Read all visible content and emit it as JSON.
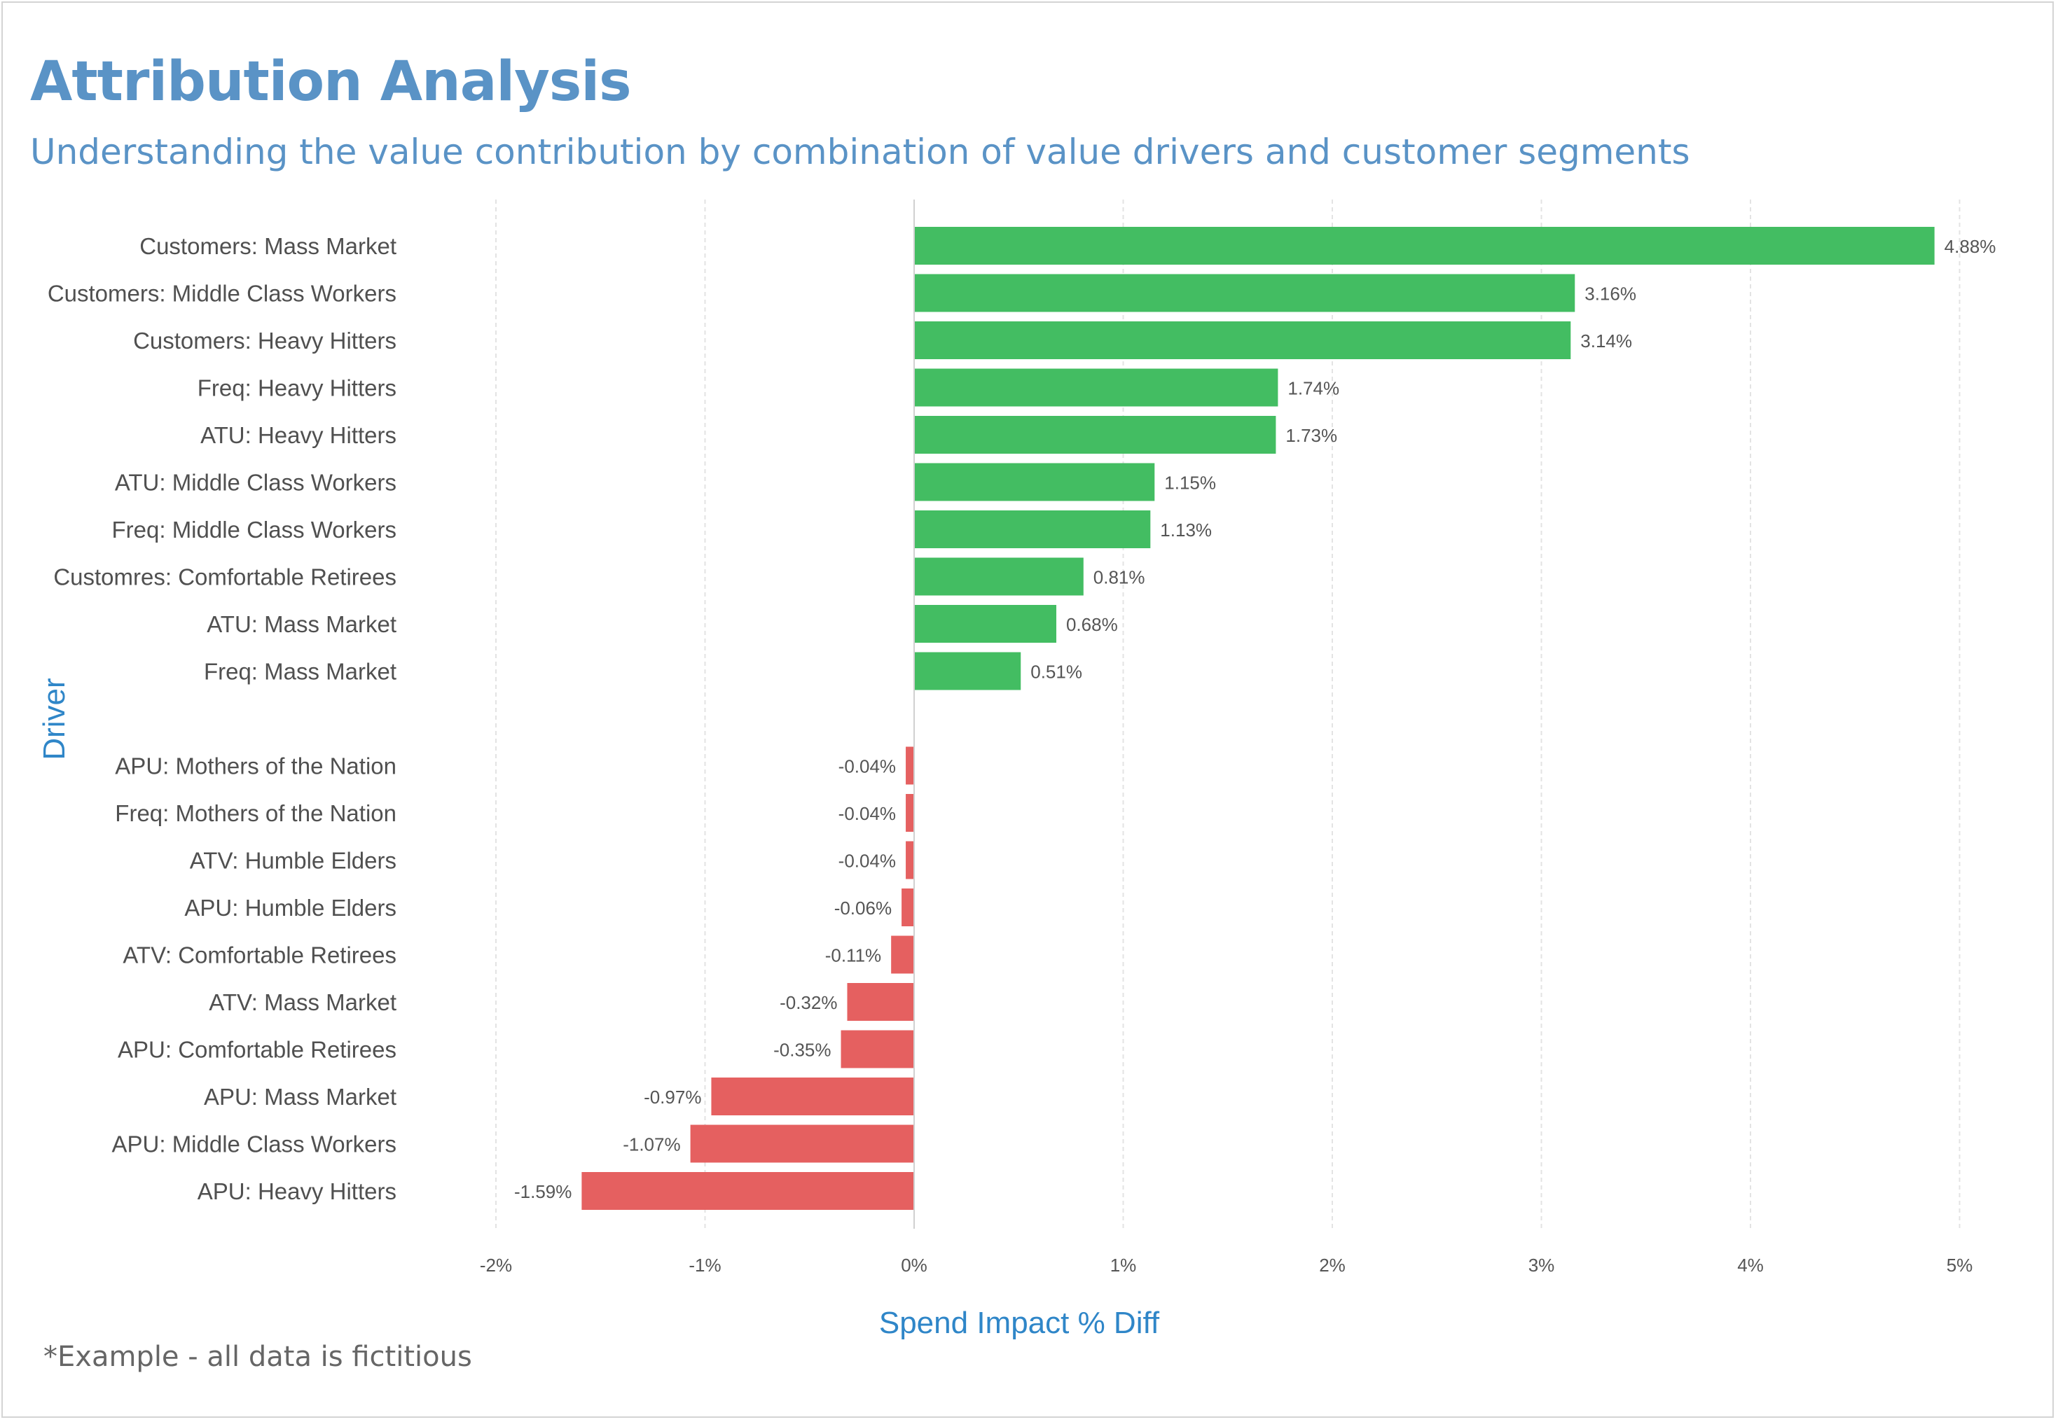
{
  "header": {
    "title": "Attribution Analysis",
    "subtitle": "Understanding the value contribution by combination of value drivers and customer segments"
  },
  "footnote": "*Example - all data is fictitious",
  "colors": {
    "positive": "#43bd62",
    "negative": "#e56060",
    "title": "#5a93c6",
    "axis_title": "#2f86c8",
    "grid": "#e3e3e3"
  },
  "chart_data": {
    "type": "bar",
    "orientation": "horizontal",
    "xlabel": "Spend Impact % Diff",
    "ylabel": "Driver",
    "xlim": [
      -2,
      5
    ],
    "xticks": [
      -2,
      -1,
      0,
      1,
      2,
      3,
      4,
      5
    ],
    "xtick_labels": [
      "-2%",
      "-1%",
      "0%",
      "1%",
      "2%",
      "3%",
      "4%",
      "5%"
    ],
    "grid": "vertical dashed",
    "groups": [
      {
        "sign": "positive",
        "categories": [
          "Customers: Mass Market",
          "Customers: Middle Class Workers",
          "Customers: Heavy Hitters",
          "Freq: Heavy Hitters",
          "ATU: Heavy Hitters",
          "ATU: Middle Class Workers",
          "Freq: Middle Class Workers",
          "Customres: Comfortable Retirees",
          "ATU: Mass Market",
          "Freq: Mass Market"
        ],
        "values": [
          4.88,
          3.16,
          3.14,
          1.74,
          1.73,
          1.15,
          1.13,
          0.81,
          0.68,
          0.51
        ],
        "labels": [
          "4.88%",
          "3.16%",
          "3.14%",
          "1.74%",
          "1.73%",
          "1.15%",
          "1.13%",
          "0.81%",
          "0.68%",
          "0.51%"
        ]
      },
      {
        "sign": "negative",
        "categories": [
          "APU: Mothers of the Nation",
          "Freq: Mothers of the Nation",
          "ATV: Humble Elders",
          "APU: Humble Elders",
          "ATV: Comfortable Retirees",
          "ATV: Mass Market",
          "APU: Comfortable Retirees",
          "APU: Mass Market",
          "APU: Middle Class Workers",
          "APU: Heavy Hitters"
        ],
        "values": [
          -0.04,
          -0.04,
          -0.04,
          -0.06,
          -0.11,
          -0.32,
          -0.35,
          -0.97,
          -1.07,
          -1.59
        ],
        "labels": [
          "-0.04%",
          "-0.04%",
          "-0.04%",
          "-0.06%",
          "-0.11%",
          "-0.32%",
          "-0.35%",
          "-0.97%",
          "-1.07%",
          "-1.59%"
        ]
      }
    ]
  }
}
